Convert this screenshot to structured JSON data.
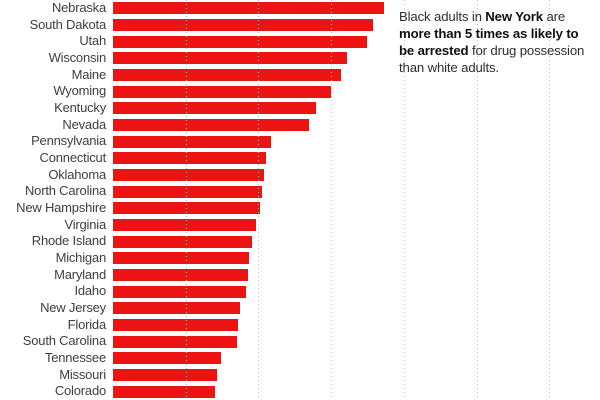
{
  "annotation": {
    "lines": [
      {
        "segments": [
          {
            "text": "Black adults in ",
            "bold": false
          },
          {
            "text": "New York",
            "bold": true
          },
          {
            "text": " are",
            "bold": false
          }
        ]
      },
      {
        "segments": [
          {
            "text": "more than 5 times as likely to",
            "bold": true
          }
        ]
      },
      {
        "segments": [
          {
            "text": "be arrested",
            "bold": true
          },
          {
            "text": " for drug possession",
            "bold": false
          }
        ]
      },
      {
        "segments": [
          {
            "text": "than white adults.",
            "bold": false
          }
        ]
      }
    ]
  },
  "chart_data": {
    "type": "bar",
    "orientation": "horizontal",
    "value_meaning": "times as likely to be arrested for drug possession (Black vs white adults), estimated from gridlines",
    "categories": [
      "Nebraska",
      "South Dakota",
      "Utah",
      "Wisconsin",
      "Maine",
      "Wyoming",
      "Kentucky",
      "Nevada",
      "Pennsylvania",
      "Connecticut",
      "Oklahoma",
      "North Carolina",
      "New Hampshire",
      "Virginia",
      "Rhode Island",
      "Michigan",
      "Maryland",
      "Idaho",
      "New Jersey",
      "Florida",
      "South Carolina",
      "Tennessee",
      "Missouri",
      "Colorado"
    ],
    "values": [
      3.73,
      3.57,
      3.49,
      3.22,
      3.14,
      3.0,
      2.79,
      2.7,
      2.17,
      2.11,
      2.07,
      2.05,
      2.02,
      1.96,
      1.91,
      1.87,
      1.86,
      1.83,
      1.74,
      1.72,
      1.71,
      1.49,
      1.43,
      1.4
    ],
    "axis": {
      "xmin": 0,
      "xmax_visible": 6.7,
      "gridlines": [
        1,
        2,
        3,
        4,
        5,
        6
      ],
      "grid_style": "dotted-vertical",
      "tick_labels_visible": false
    },
    "colors": {
      "bar": "#ec1313",
      "label": "#3e3e3e",
      "gridline": "#c4c4c4",
      "annotation_text": "#2e2e2e",
      "annotation_bold": "#101010",
      "background": "#ffffff"
    },
    "notes_visible_in_image": "chart is cropped; no title, axis tick labels or legend are visible in the screenshot"
  }
}
